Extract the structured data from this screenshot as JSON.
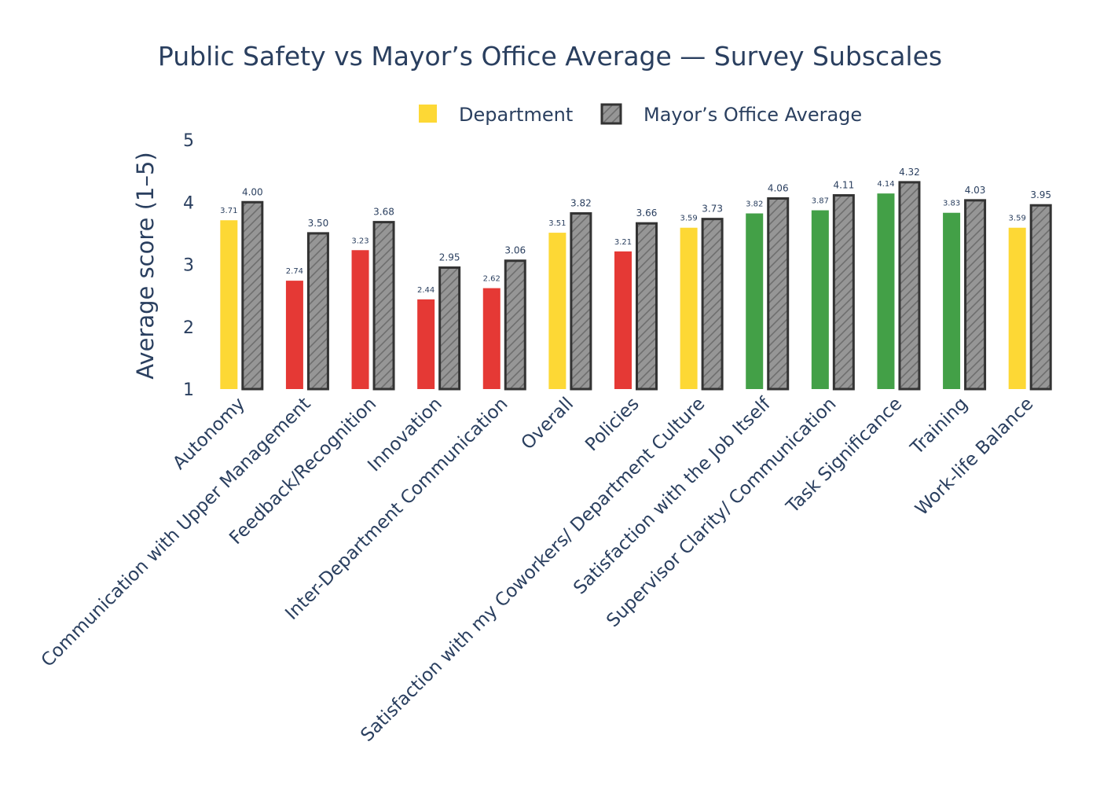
{
  "colors": {
    "below": "#e53935",
    "near": "#fdd835",
    "above": "#43a047",
    "avg_fill": "#969696",
    "avg_stroke": "#333333",
    "text": "#2a3f5f"
  },
  "chart_data": {
    "type": "bar",
    "title": "Public Safety vs Mayor’s Office Average — Survey Subscales",
    "xlabel": "",
    "ylabel": "Average score (1–5)",
    "ylim": [
      1,
      5
    ],
    "yticks": [
      "1",
      "2",
      "3",
      "4",
      "5"
    ],
    "legend_position": "top-center",
    "grid": false,
    "categories": [
      "Autonomy",
      "Communication with Upper Management",
      "Feedback/Recognition",
      "Innovation",
      "Inter-Department Communication",
      "Overall",
      "Policies",
      "Satisfaction with my Coworkers/ Department Culture",
      "Satisfaction with the Job Itself",
      "Supervisor Clarity/ Communication",
      "Task Significance",
      "Training",
      "Work-life Balance"
    ],
    "series": [
      {
        "name": "Department",
        "values": [
          3.71,
          2.74,
          3.23,
          2.44,
          2.62,
          3.51,
          3.21,
          3.59,
          3.82,
          3.87,
          4.14,
          3.83,
          3.59
        ],
        "labels": [
          "3.71",
          "2.74",
          "3.23",
          "2.44",
          "2.62",
          "3.51",
          "3.21",
          "3.59",
          "3.82",
          "3.87",
          "4.14",
          "3.83",
          "3.59"
        ],
        "status": [
          "near",
          "below",
          "below",
          "below",
          "below",
          "near",
          "below",
          "near",
          "above",
          "above",
          "above",
          "above",
          "near"
        ]
      },
      {
        "name": "Mayor’s Office Average",
        "values": [
          4.0,
          3.5,
          3.68,
          2.95,
          3.06,
          3.82,
          3.66,
          3.73,
          4.06,
          4.11,
          4.32,
          4.03,
          3.95
        ],
        "labels": [
          "4.00",
          "3.50",
          "3.68",
          "2.95",
          "3.06",
          "3.82",
          "3.66",
          "3.73",
          "4.06",
          "4.11",
          "4.32",
          "4.03",
          "3.95"
        ]
      }
    ]
  }
}
